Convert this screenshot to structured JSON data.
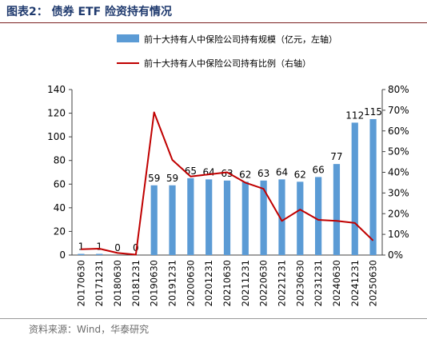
{
  "header": {
    "title": "图表2： 债券 ETF 险资持有情况"
  },
  "footer": {
    "source": "资料来源：Wind，华泰研究"
  },
  "colors": {
    "bar": "#5b9bd5",
    "line": "#c00000",
    "axis": "#404040"
  },
  "chart_data": {
    "type": "bar",
    "categories": [
      "20170630",
      "20171231",
      "20180630",
      "20181231",
      "20190630",
      "20191231",
      "20200630",
      "20201231",
      "20210630",
      "20211231",
      "20220630",
      "20221231",
      "20230630",
      "20231231",
      "20240630",
      "20241231",
      "20250630"
    ],
    "series": [
      {
        "name": "前十大持有人中保险公司持有规模（亿元，左轴）",
        "type": "bar",
        "axis": "left",
        "values": [
          1,
          1,
          0,
          0,
          59,
          59,
          65,
          64,
          63,
          62,
          63,
          64,
          62,
          66,
          77,
          112,
          115
        ],
        "labels": [
          "1",
          "1",
          "0",
          "0",
          "59",
          "59",
          "65",
          "64",
          "63",
          "62",
          "63",
          "64",
          "62",
          "66",
          "77",
          "112",
          "115"
        ]
      },
      {
        "name": "前十大持有人中保险公司持有比例（右轴）",
        "type": "line",
        "axis": "right",
        "values": [
          2.8,
          3.1,
          1.0,
          0.2,
          69.0,
          46.0,
          38.0,
          39.0,
          40.0,
          35.0,
          32.0,
          16.5,
          22.0,
          17.0,
          16.5,
          15.5,
          7.0
        ]
      }
    ],
    "y_left": {
      "min": 0,
      "max": 140,
      "ticks": [
        0,
        20,
        40,
        60,
        80,
        100,
        120,
        140
      ],
      "tick_labels": [
        "0",
        "20",
        "40",
        "60",
        "80",
        "100",
        "120",
        "140"
      ]
    },
    "y_right": {
      "min": 0,
      "max": 80,
      "ticks": [
        0,
        10,
        20,
        30,
        40,
        50,
        60,
        70,
        80
      ],
      "tick_labels": [
        "0%",
        "10%",
        "20%",
        "30%",
        "40%",
        "50%",
        "60%",
        "70%",
        "80%"
      ]
    },
    "legend_position": "top-center",
    "grid": false
  }
}
